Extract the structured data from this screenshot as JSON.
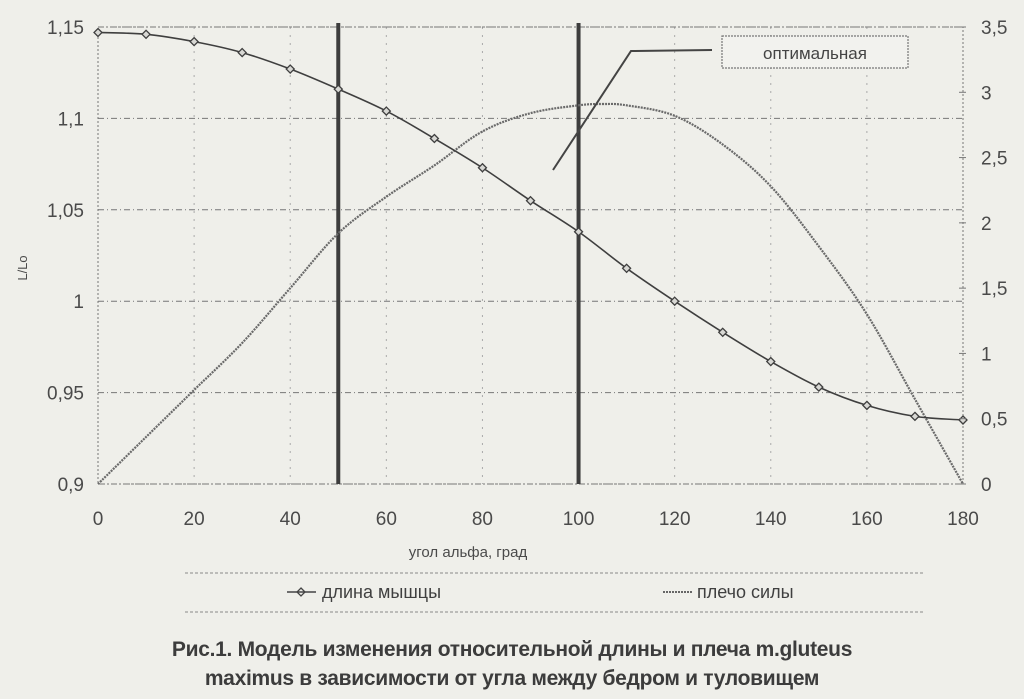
{
  "chart_data": {
    "type": "line",
    "title": "",
    "xlabel": "угол альфа, град",
    "ylabel": "L/Lo",
    "y2label": "",
    "xlim": [
      0,
      180
    ],
    "ylim": [
      0.9,
      1.15
    ],
    "y2lim": [
      0,
      3.5
    ],
    "x_ticks": [
      "0",
      "20",
      "40",
      "60",
      "80",
      "100",
      "120",
      "140",
      "160",
      "180"
    ],
    "y_ticks": [
      "0,9",
      "0,95",
      "1",
      "1,05",
      "1,1",
      "1,15"
    ],
    "y2_ticks": [
      "0",
      "0,5",
      "1",
      "1,5",
      "2",
      "2,5",
      "3",
      "3,5"
    ],
    "grid": true,
    "legend_position": "bottom",
    "series": [
      {
        "name": "длина мышцы",
        "axis": "left",
        "marker": "diamond",
        "x": [
          0,
          10,
          20,
          30,
          40,
          50,
          60,
          70,
          80,
          90,
          100,
          110,
          120,
          130,
          140,
          150,
          160,
          170,
          180
        ],
        "values": [
          1.147,
          1.146,
          1.142,
          1.136,
          1.127,
          1.116,
          1.104,
          1.089,
          1.073,
          1.055,
          1.038,
          1.018,
          1.0,
          0.983,
          0.967,
          0.953,
          0.943,
          0.937,
          0.935
        ]
      },
      {
        "name": "плечо силы",
        "axis": "right",
        "marker": "none",
        "x": [
          0,
          10,
          20,
          30,
          40,
          50,
          60,
          70,
          80,
          90,
          100,
          105,
          110,
          120,
          130,
          140,
          150,
          160,
          170,
          180
        ],
        "values": [
          0.0,
          0.36,
          0.72,
          1.08,
          1.5,
          1.92,
          2.2,
          2.44,
          2.7,
          2.84,
          2.9,
          2.91,
          2.9,
          2.82,
          2.6,
          2.28,
          1.82,
          1.3,
          0.65,
          0.0
        ]
      }
    ],
    "annotations": [
      {
        "text": "оптимальная",
        "type": "label-box"
      },
      {
        "type": "vertical-line",
        "x": 50
      },
      {
        "type": "vertical-line",
        "x": 100
      }
    ]
  },
  "legend": {
    "item1": "длина мышцы",
    "item2": "плечо силы"
  },
  "annotation_label": "оптимальная",
  "caption": {
    "line1": "Рис.1. Модель изменения относительной длины  и плеча m.gluteus",
    "line2": "maximus в зависимости от угла между бедром и туловищем"
  }
}
